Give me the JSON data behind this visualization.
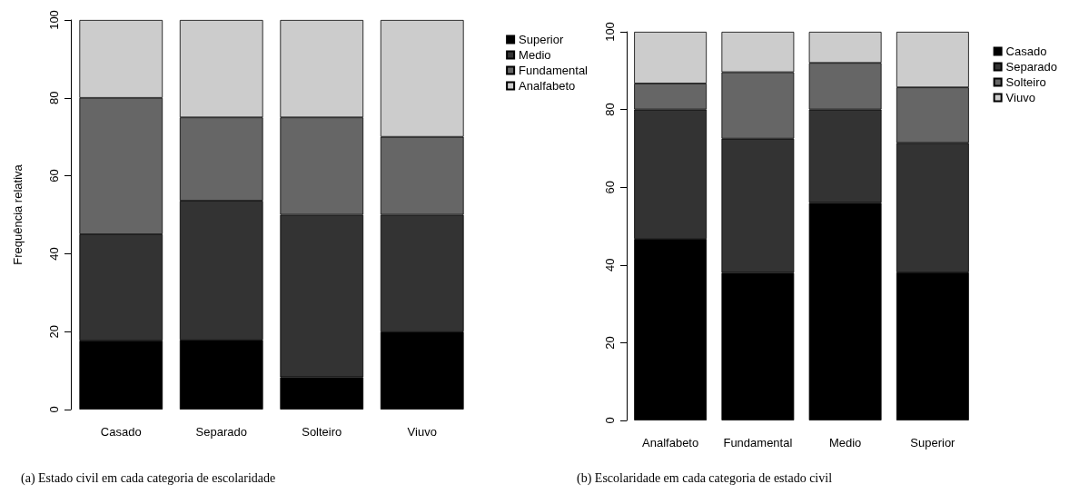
{
  "chart_data": [
    {
      "type": "bar",
      "title": "(a) Estado civil em cada categoria de escolaridade",
      "ylabel": "Frequência relativa",
      "categories": [
        "Casado",
        "Separado",
        "Solteiro",
        "Viuvo"
      ],
      "stacked": true,
      "ylim": [
        0,
        100
      ],
      "yticks": [
        0,
        20,
        40,
        60,
        80,
        100
      ],
      "grid": false,
      "legend": "top right",
      "series": [
        {
          "name": "Superior",
          "color": "#000000",
          "values": [
            17.7,
            17.9,
            8.3,
            20
          ]
        },
        {
          "name": "Medio",
          "color": "#333333",
          "values": [
            27.3,
            35.7,
            41.7,
            30
          ]
        },
        {
          "name": "Fundamental",
          "color": "#666666",
          "values": [
            35,
            21.4,
            25,
            20
          ]
        },
        {
          "name": "Analfabeto",
          "color": "#cccccc",
          "values": [
            20,
            25,
            25,
            30
          ]
        }
      ]
    },
    {
      "type": "bar",
      "title": "(b) Escolaridade em cada categoria de estado civil",
      "categories": [
        "Analfabeto",
        "Fundamental",
        "Medio",
        "Superior"
      ],
      "stacked": true,
      "ylim": [
        0,
        100
      ],
      "yticks": [
        0,
        20,
        40,
        60,
        80,
        100
      ],
      "grid": false,
      "legend": "top right",
      "series": [
        {
          "name": "Casado",
          "color": "#000000",
          "values": [
            46.7,
            38.0,
            56,
            38.1
          ]
        },
        {
          "name": "Separado",
          "color": "#333333",
          "values": [
            33.3,
            34.5,
            24,
            33.3
          ]
        },
        {
          "name": "Solteiro",
          "color": "#666666",
          "values": [
            6.7,
            17.1,
            12,
            14.3
          ]
        },
        {
          "name": "Viuvo",
          "color": "#cccccc",
          "values": [
            13.3,
            10.4,
            8,
            14.3
          ]
        }
      ]
    }
  ]
}
